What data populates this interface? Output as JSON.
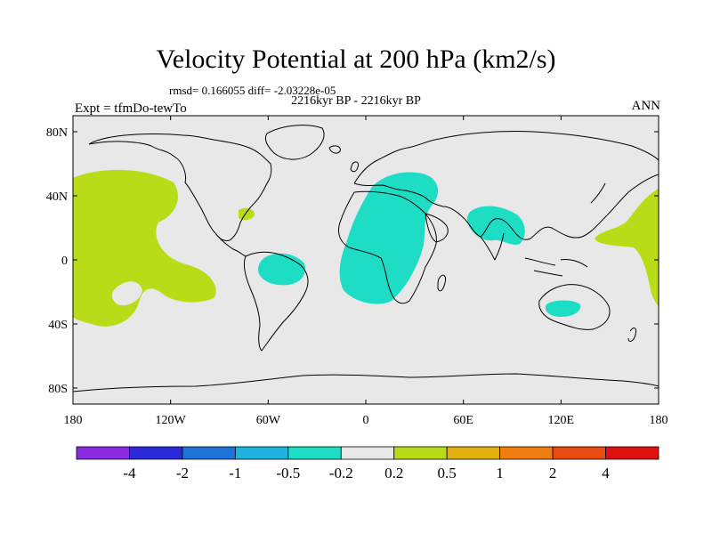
{
  "title": "Velocity Potential at 200 hPa (km2/s)",
  "rmsd_line": "rmsd= 0.166055  diff= -2.03228e-05",
  "period": "2216kyr BP - 2216kyr BP",
  "expt": "Expt = tfmDo-tewTo",
  "season": "ANN",
  "lat_ticks": [
    "80N",
    "40N",
    "0",
    "40S",
    "80S"
  ],
  "lon_ticks": [
    "180",
    "120W",
    "60W",
    "0",
    "60E",
    "120E",
    "180"
  ],
  "colorbar": {
    "colors": [
      "#8a2be2",
      "#2a2adb",
      "#1e73d8",
      "#1fb4e0",
      "#1ddec4",
      "#e8e8e8",
      "#b8dc18",
      "#e3b00f",
      "#ef7d10",
      "#e94b10",
      "#e01010"
    ],
    "labels": [
      "-4",
      "-2",
      "-1",
      "-0.5",
      "-0.2",
      "0.2",
      "0.5",
      "1",
      "2",
      "4"
    ]
  },
  "colors": {
    "ocean_bg": "#e8e8e8",
    "positive": "#b8dc18",
    "negative": "#1ddec4"
  }
}
